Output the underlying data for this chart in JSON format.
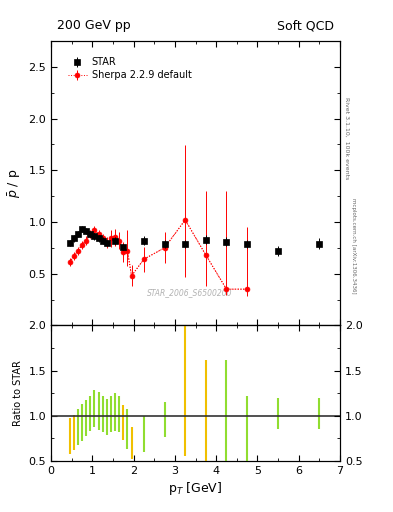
{
  "title_left": "200 GeV pp",
  "title_right": "Soft QCD",
  "ylabel_main": "$\\bar{p}$ / p",
  "ylabel_ratio": "Ratio to STAR",
  "xlabel": "p$_T$ [GeV]",
  "right_label_top": "Rivet 3.1.10,  100k events",
  "right_label_bot": "mcplots.cern.ch [arXiv:1306.3436]",
  "watermark": "STAR_2006_S6500200",
  "ylim_main": [
    0.0,
    2.75
  ],
  "ylim_ratio": [
    0.5,
    2.0
  ],
  "xlim": [
    0.0,
    7.0
  ],
  "yticks_main": [
    0.5,
    1.0,
    1.5,
    2.0,
    2.5
  ],
  "yticks_ratio": [
    0.5,
    1.0,
    1.5,
    2.0
  ],
  "xticks": [
    0,
    1,
    2,
    3,
    4,
    5,
    6,
    7
  ],
  "star_x": [
    0.45,
    0.55,
    0.65,
    0.75,
    0.85,
    0.95,
    1.05,
    1.15,
    1.25,
    1.35,
    1.55,
    1.75,
    2.25,
    2.75,
    3.25,
    3.75,
    4.25,
    4.75,
    5.5,
    6.5
  ],
  "star_y": [
    0.8,
    0.84,
    0.88,
    0.93,
    0.91,
    0.88,
    0.86,
    0.84,
    0.82,
    0.8,
    0.82,
    0.76,
    0.82,
    0.79,
    0.79,
    0.83,
    0.81,
    0.79,
    0.72,
    0.79
  ],
  "star_yerr": [
    0.03,
    0.03,
    0.03,
    0.03,
    0.03,
    0.03,
    0.03,
    0.03,
    0.03,
    0.03,
    0.03,
    0.03,
    0.04,
    0.04,
    0.04,
    0.04,
    0.04,
    0.04,
    0.05,
    0.05
  ],
  "sherpa_x": [
    0.45,
    0.55,
    0.65,
    0.75,
    0.85,
    0.95,
    1.05,
    1.15,
    1.25,
    1.35,
    1.45,
    1.55,
    1.65,
    1.75,
    1.85,
    1.95,
    2.25,
    2.75,
    3.25,
    3.75,
    4.25,
    4.75
  ],
  "sherpa_y": [
    0.61,
    0.67,
    0.72,
    0.78,
    0.82,
    0.88,
    0.92,
    0.88,
    0.84,
    0.8,
    0.84,
    0.85,
    0.82,
    0.71,
    0.72,
    0.48,
    0.64,
    0.75,
    1.02,
    0.68,
    0.35,
    0.35
  ],
  "sherpa_yerr_lo": [
    0.04,
    0.04,
    0.04,
    0.04,
    0.04,
    0.04,
    0.04,
    0.04,
    0.04,
    0.05,
    0.08,
    0.08,
    0.08,
    0.1,
    0.15,
    0.1,
    0.12,
    0.15,
    0.55,
    0.3,
    0.06,
    0.07
  ],
  "sherpa_yerr_hi": [
    0.04,
    0.04,
    0.04,
    0.04,
    0.04,
    0.04,
    0.04,
    0.04,
    0.04,
    0.05,
    0.08,
    0.08,
    0.08,
    0.1,
    0.2,
    0.1,
    0.12,
    0.15,
    0.72,
    0.62,
    0.95,
    0.6
  ],
  "ratio_x": [
    0.45,
    0.55,
    0.65,
    0.75,
    0.85,
    0.95,
    1.05,
    1.15,
    1.25,
    1.35,
    1.45,
    1.55,
    1.65,
    1.75,
    1.85,
    1.95,
    2.25,
    2.75,
    3.25,
    3.75,
    4.25,
    4.75,
    5.5,
    6.5
  ],
  "ratio_ylo": [
    0.58,
    0.62,
    0.67,
    0.72,
    0.77,
    0.83,
    0.87,
    0.84,
    0.82,
    0.79,
    0.82,
    0.83,
    0.82,
    0.73,
    0.63,
    0.52,
    0.6,
    0.76,
    0.55,
    0.42,
    0.39,
    0.19,
    0.85,
    0.85
  ],
  "ratio_yhi": [
    0.97,
    1.01,
    1.07,
    1.13,
    1.17,
    1.22,
    1.28,
    1.26,
    1.22,
    1.19,
    1.22,
    1.25,
    1.22,
    1.12,
    1.07,
    0.87,
    1.0,
    1.15,
    2.0,
    1.62,
    1.62,
    1.22,
    1.2,
    1.2
  ],
  "ratio_colors": [
    "#f0c000",
    "#f0c000",
    "#90dd30",
    "#90dd30",
    "#90dd30",
    "#90dd30",
    "#90dd30",
    "#90dd30",
    "#90dd30",
    "#90dd30",
    "#90dd30",
    "#90dd30",
    "#90dd30",
    "#f0c000",
    "#90dd30",
    "#f0c000",
    "#90dd30",
    "#90dd30",
    "#f0c000",
    "#f0c000",
    "#90dd30",
    "#90dd30",
    "#90dd30",
    "#90dd30"
  ],
  "star_color": "black",
  "sherpa_color": "red"
}
